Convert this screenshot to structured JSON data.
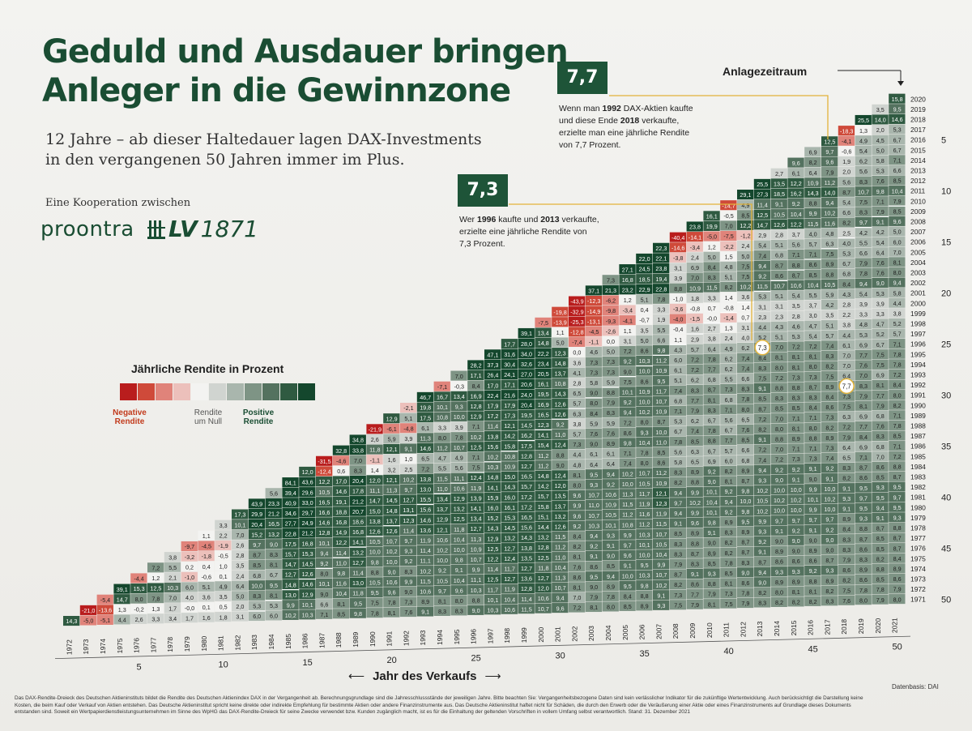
{
  "title": {
    "line1": "Geduld und Ausdauer bringen",
    "line2": "Anleger in die Gewinnzone"
  },
  "subtitle": {
    "line1": "12 Jahre – ab dieser Haltedauer lagen DAX-Investments",
    "line2": "in den vergangenen 50 Jahren immer im Plus."
  },
  "cooperation": {
    "label": "Eine Kooperation zwischen",
    "partner1": "pro",
    "partner1b": "ontra",
    "partner2": "LV",
    "partner2b": "1871"
  },
  "callouts": [
    {
      "value": "7,7",
      "line1": "Wenn man",
      "year_buy": "1992",
      "line1b": "DAX-Aktien kaufte",
      "line2": "und diese Ende",
      "year_sell": "2018",
      "line2b": "verkaufte,",
      "line3": "erzielte man eine jährliche Rendite",
      "line4": "von 7,7 Prozent."
    },
    {
      "value": "7,3",
      "line1": "Wer",
      "year_buy": "1996",
      "line1b": "kaufte und",
      "year_sell": "2013",
      "line1c": "verkaufte,",
      "line2": "erzielte eine jährliche Rendite von",
      "line3": "7,3 Prozent."
    }
  ],
  "axis": {
    "anlagezeitraum": "Anlagezeitraum",
    "jahr_des_verkaufs": "Jahr des Verkaufs",
    "arrow_left": "⟵",
    "arrow_right": "⟶",
    "source": "Datenbasis: DAI"
  },
  "legend": {
    "title": "Jährliche Rendite in Prozent",
    "negative_line1": "Negative",
    "negative_line2": "Rendite",
    "zero_line1": "Rendite",
    "zero_line2": "um Null",
    "positive_line1": "Positive",
    "positive_line2": "Rendite",
    "colors": [
      "#b91d1d",
      "#cf4a3a",
      "#e0837a",
      "#ecc0bb",
      "#f3f3f1",
      "#d0d4d0",
      "#a9b6ad",
      "#7e9485",
      "#54725f",
      "#2f5a41",
      "#14472d"
    ]
  },
  "disclaimer": {
    "line1": "Das DAX-Rendite-Dreieck des Deutschen Aktieninstituts bildet die Rendite des Deutschen Aktienindex DAX in der Vergangenheit ab. Berechnungsgrundlage sind die Jahresschlussstände der jeweiligen Jahre. Bitte beachten Sie: Vergangenheitsbezogene Daten sind kein verlässlicher Indikator für die zukünftige Wertentwicklung. Auch berücksichtigt die Darstellung keine",
    "line2": "Kosten, die beim Kauf oder Verkauf von Aktien entstehen. Das Deutsche Aktieninstitut spricht keine direkte oder indirekte Empfehlung für bestimmte Aktien oder andere Finanzinstrumente aus. Das Deutsche Aktieninstitut haftet nicht für Schäden, die durch den Erwerb oder die Veräußerung einer Aktie oder eines Finanzinstruments auf Grundlage dieses Dokuments",
    "line3": "entstanden sind. Soweit ein Wertpapierdienstleistungsunternehmen im Sinne des WpHG das DAX-Rendite-Dreieck für seine Zwecke verwendet bzw. Kunden zugänglich macht, ist es für die Einhaltung der geltenden Vorschriften in vollem Umfang selbst verantwortlich. Stand: 31. Dezember 2021"
  },
  "chart_data": {
    "type": "heatmap",
    "title": "Jährliche Rendite in Prozent",
    "xlabel": "Jahr des Verkaufs",
    "ylabel": "Anlagezeitraum",
    "sell_years": [
      1972,
      1973,
      1974,
      1975,
      1976,
      1977,
      1978,
      1979,
      1980,
      1981,
      1982,
      1983,
      1984,
      1985,
      1986,
      1987,
      1988,
      1989,
      1990,
      1991,
      1992,
      1993,
      1994,
      1995,
      1996,
      1997,
      1998,
      1999,
      2000,
      2001,
      2002,
      2003,
      2004,
      2005,
      2006,
      2007,
      2008,
      2009,
      2010,
      2011,
      2012,
      2013,
      2014,
      2015,
      2016,
      2017,
      2018,
      2019,
      2020,
      2021
    ],
    "buy_years": [
      1971,
      1972,
      1973,
      1974,
      1975,
      1976,
      1977,
      1978,
      1979,
      1980,
      1981,
      1982,
      1983,
      1984,
      1985,
      1986,
      1987,
      1988,
      1989,
      1990,
      1991,
      1992,
      1993,
      1994,
      1995,
      1996,
      1997,
      1998,
      1999,
      2000,
      2001,
      2002,
      2003,
      2004,
      2005,
      2006,
      2007,
      2008,
      2009,
      2010,
      2011,
      2012,
      2013,
      2014,
      2015,
      2016,
      2017,
      2018,
      2019,
      2020
    ],
    "bottom_ticks": [
      "5",
      "10",
      "15",
      "20",
      "25",
      "30",
      "35",
      "40",
      "45",
      "50"
    ],
    "right_ticks": [
      "5",
      "10",
      "15",
      "20",
      "25",
      "30",
      "35",
      "40",
      "45",
      "50"
    ],
    "annual_returns_1972_2021": [
      14.3,
      -21.0,
      -5.4,
      39.1,
      -4.4,
      7.2,
      3.8,
      -9.7,
      1.1,
      3.3,
      17.3,
      43.9,
      5.6,
      84.1,
      12.0,
      -31.5,
      32.8,
      34.8,
      -21.9,
      12.9,
      -2.1,
      46.7,
      -7.1,
      7.0,
      28.2,
      47.1,
      17.7,
      39.1,
      -7.5,
      -19.8,
      -43.9,
      37.1,
      7.3,
      27.1,
      22.0,
      22.3,
      -40.4,
      23.8,
      16.1,
      -14.7,
      29.1,
      25.5,
      2.7,
      9.6,
      6.9,
      12.5,
      -18.3,
      25.5,
      3.5,
      15.8
    ],
    "highlights": [
      {
        "buy": 1992,
        "sell": 2018,
        "value": 7.7
      },
      {
        "buy": 1996,
        "sell": 2013,
        "value": 7.3
      }
    ]
  }
}
